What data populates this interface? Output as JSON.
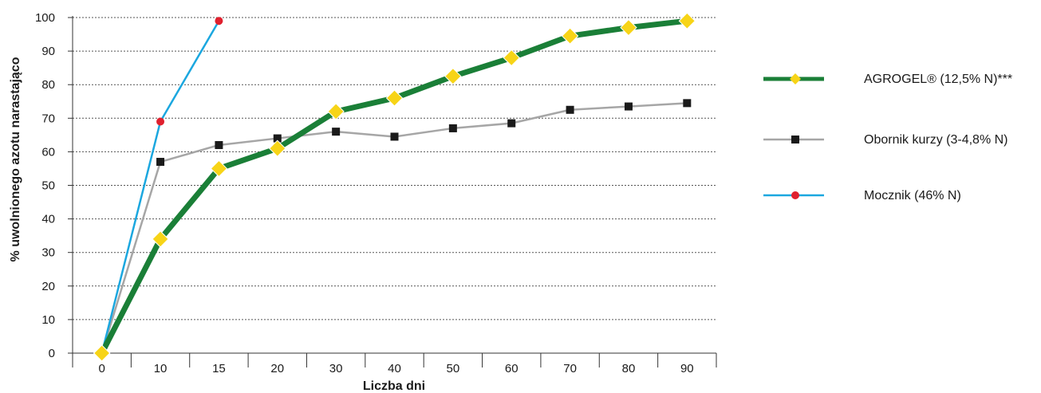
{
  "chart_data": {
    "type": "line",
    "title": "",
    "xlabel": "Liczba dni",
    "ylabel": "% uwolnionego azotu narastająco",
    "categories": [
      "0",
      "10",
      "15",
      "20",
      "30",
      "40",
      "50",
      "60",
      "70",
      "80",
      "90"
    ],
    "ylim": [
      0,
      100
    ],
    "yticks": [
      0,
      10,
      20,
      30,
      40,
      50,
      60,
      70,
      80,
      90,
      100
    ],
    "grid": "horizontal dotted",
    "legend_position": "right",
    "series": [
      {
        "name": "AGROGEL® (12,5% N)***",
        "color": "#1a7f37",
        "marker": "diamond",
        "marker_color": "#f7d417",
        "values": [
          0,
          34,
          55,
          61,
          72,
          76,
          82.5,
          88,
          94.5,
          97,
          99
        ]
      },
      {
        "name": "Obornik kurzy (3-4,8% N)",
        "color": "#a6a6a6",
        "marker": "square",
        "marker_color": "#1a1a1a",
        "values": [
          0,
          57,
          62,
          64,
          66,
          64.5,
          67,
          68.5,
          72.5,
          73.5,
          74.5
        ]
      },
      {
        "name": "Mocznik (46% N)",
        "color": "#1ba7df",
        "marker": "circle",
        "marker_color": "#e0202e",
        "values": [
          0,
          69,
          99,
          null,
          null,
          null,
          null,
          null,
          null,
          null,
          null
        ]
      }
    ]
  }
}
